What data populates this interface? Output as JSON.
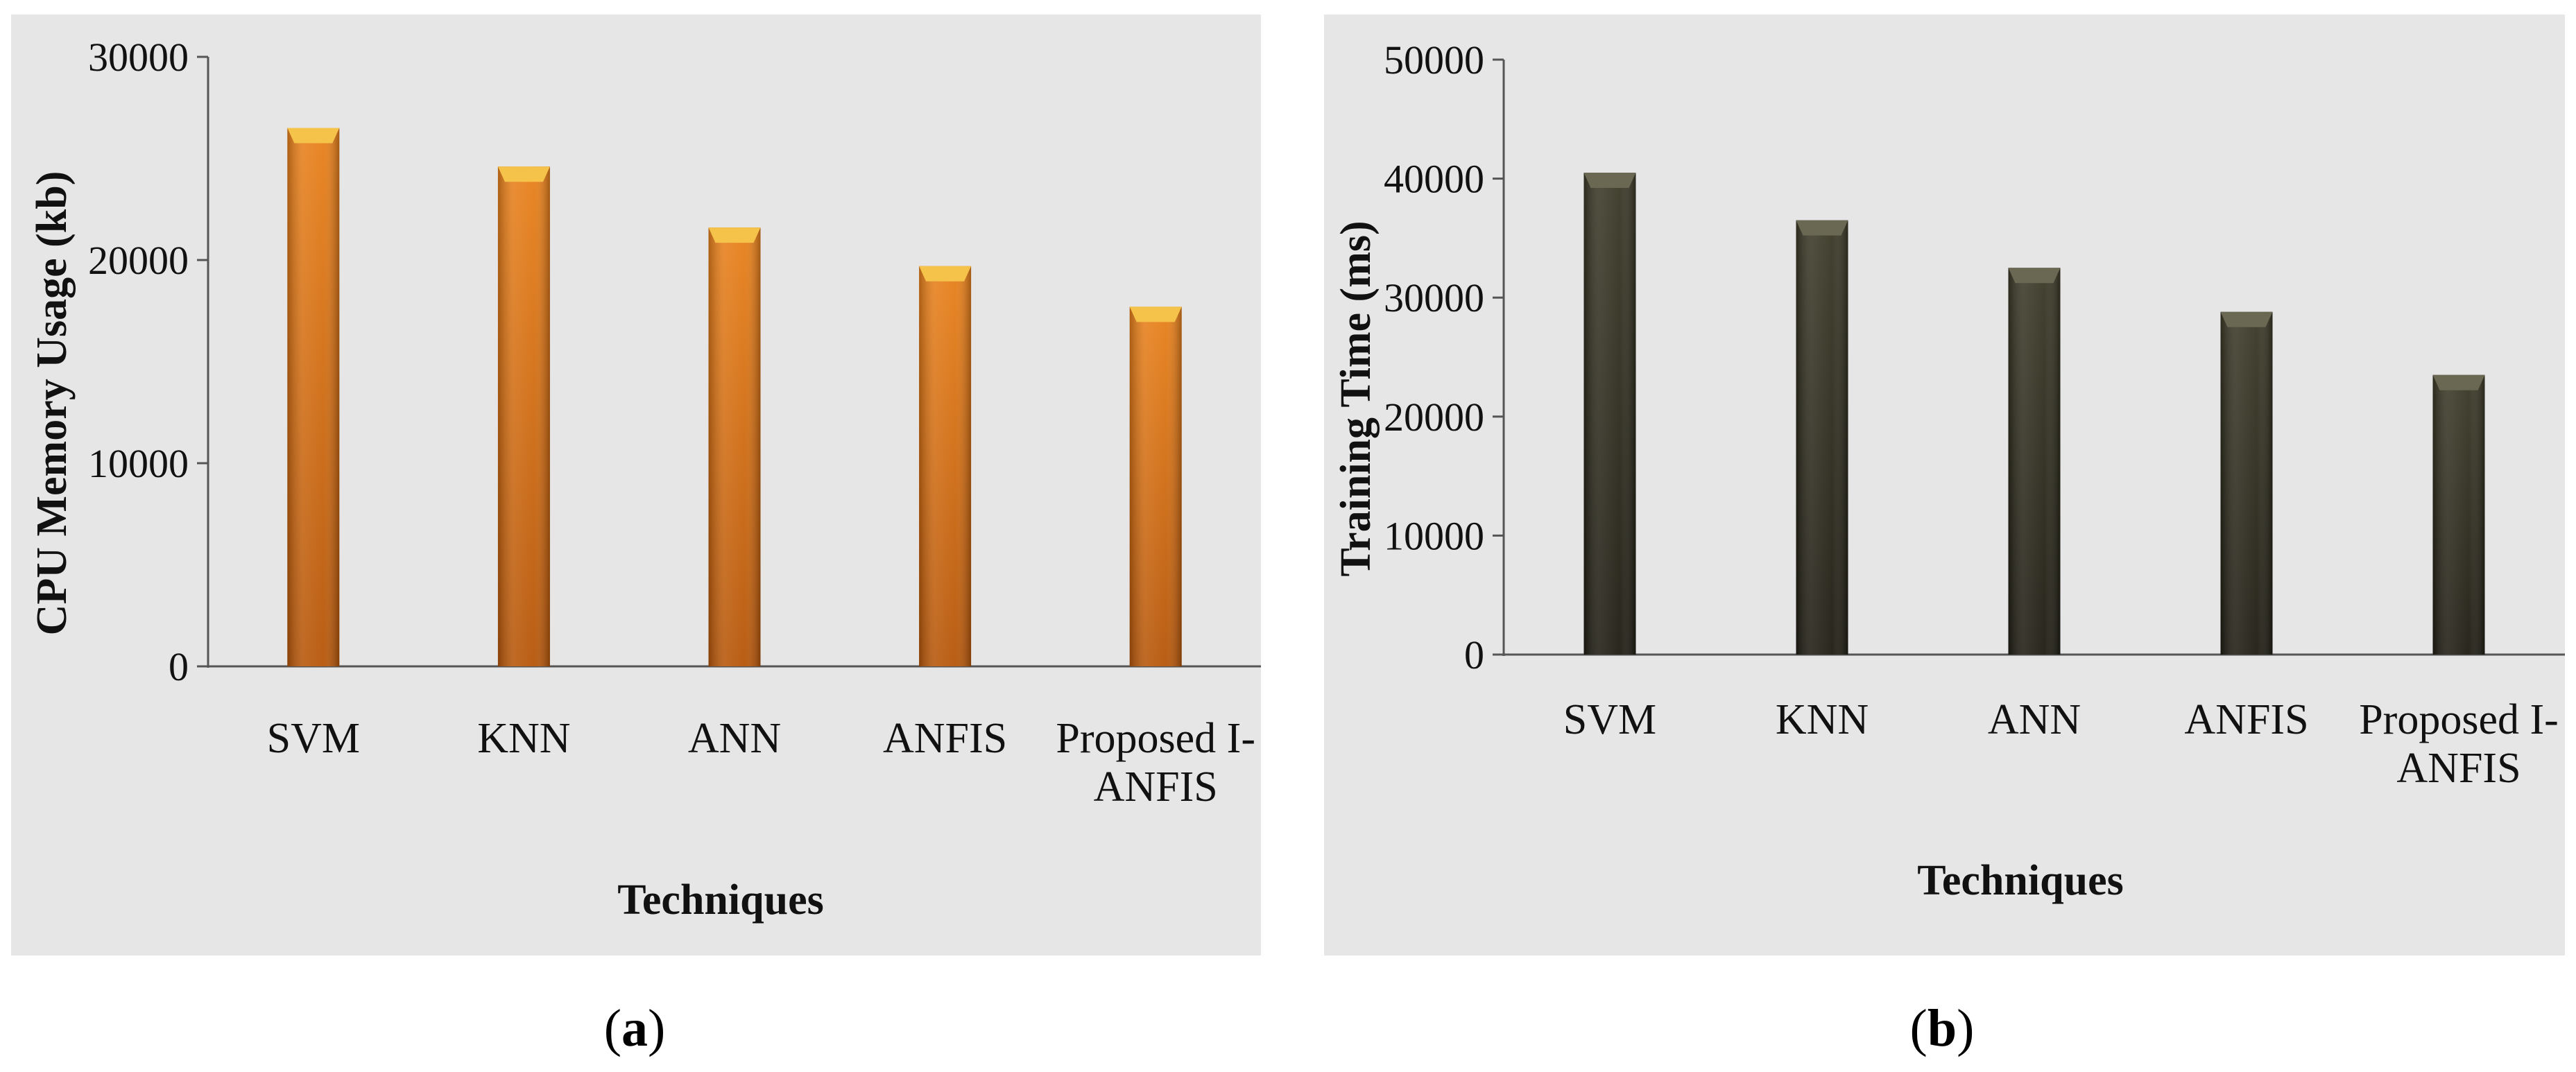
{
  "chart_data": [
    {
      "type": "bar",
      "title": "",
      "categories": [
        "SVM",
        "KNN",
        "ANN",
        "ANFIS",
        "Proposed I-ANFIS"
      ],
      "category_lines": [
        [
          "SVM"
        ],
        [
          "KNN"
        ],
        [
          "ANN"
        ],
        [
          "ANFIS"
        ],
        [
          "Proposed I-",
          "ANFIS"
        ]
      ],
      "values": [
        26500,
        24600,
        21600,
        19700,
        17700
      ],
      "xlabel": "Techniques",
      "ylabel": "CPU Memory Usage (kb)",
      "ylim": [
        0,
        30000
      ],
      "yticks": [
        0,
        10000,
        20000,
        30000
      ],
      "ytick_labels": [
        "0",
        "10000",
        "20000",
        "30000"
      ],
      "grid": false,
      "bar_color": "#e8801a",
      "bar_dark": "#b55508",
      "bar_cap": "#f5c24a",
      "caption": "a"
    },
    {
      "type": "bar",
      "title": "",
      "categories": [
        "SVM",
        "KNN",
        "ANN",
        "ANFIS",
        "Proposed I-ANFIS"
      ],
      "category_lines": [
        [
          "SVM"
        ],
        [
          "KNN"
        ],
        [
          "ANN"
        ],
        [
          "ANFIS"
        ],
        [
          "Proposed I-",
          "ANFIS"
        ]
      ],
      "values": [
        40500,
        36500,
        32500,
        28800,
        23500
      ],
      "xlabel": "Techniques",
      "ylabel": "Training Time (ms)",
      "ylim": [
        0,
        50000
      ],
      "yticks": [
        0,
        10000,
        20000,
        30000,
        40000,
        50000
      ],
      "ytick_labels": [
        "0",
        "10000",
        "20000",
        "30000",
        "40000",
        "50000"
      ],
      "grid": false,
      "bar_color": "#3a3826",
      "bar_dark": "#1e1c12",
      "bar_cap": "#6a6752",
      "caption": "b"
    }
  ]
}
